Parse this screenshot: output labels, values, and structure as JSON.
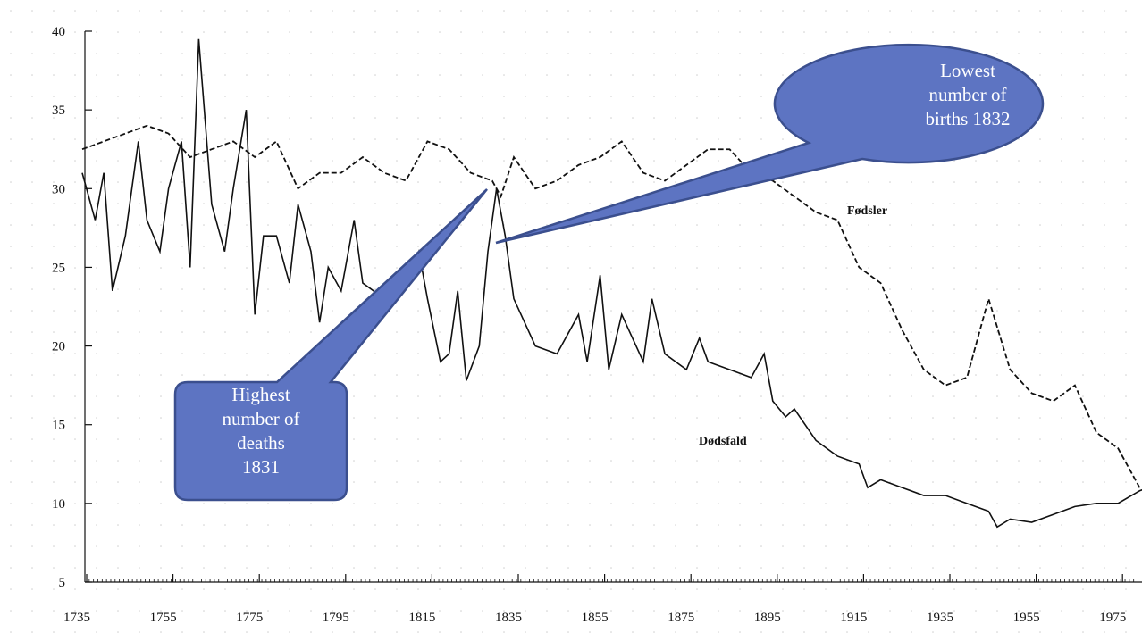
{
  "chart_data": {
    "type": "line",
    "xlim": [
      1735,
      1982
    ],
    "ylim": [
      5,
      40
    ],
    "xticks": [
      1735,
      1755,
      1775,
      1795,
      1815,
      1835,
      1855,
      1875,
      1895,
      1915,
      1935,
      1955,
      1975
    ],
    "yticks": [
      5,
      10,
      15,
      20,
      25,
      30,
      35,
      40
    ],
    "series": [
      {
        "name": "Fødsler",
        "color": "#111111",
        "dash": true,
        "x": [
          1735,
          1740,
          1745,
          1750,
          1755,
          1760,
          1765,
          1770,
          1775,
          1780,
          1785,
          1790,
          1795,
          1800,
          1805,
          1810,
          1815,
          1820,
          1825,
          1830,
          1832,
          1835,
          1840,
          1845,
          1850,
          1855,
          1860,
          1865,
          1870,
          1875,
          1880,
          1885,
          1890,
          1895,
          1900,
          1905,
          1910,
          1915,
          1920,
          1925,
          1930,
          1935,
          1940,
          1945,
          1950,
          1955,
          1960,
          1965,
          1970,
          1975,
          1980,
          1982
        ],
        "values": [
          32.5,
          33,
          33.5,
          34,
          33.5,
          32,
          32.5,
          33,
          32,
          33,
          30,
          31,
          31,
          32,
          31,
          30.5,
          33,
          32.5,
          31,
          30.5,
          29.5,
          32,
          30,
          30.5,
          31.5,
          32,
          33,
          31,
          30.5,
          31.5,
          32.5,
          32.5,
          31,
          30.5,
          29.5,
          28.5,
          28,
          25,
          24,
          21,
          18.5,
          17.5,
          18,
          23,
          18.5,
          17,
          16.5,
          17.5,
          14.5,
          13.5,
          11,
          10.5
        ]
      },
      {
        "name": "Dødsfald",
        "color": "#111111",
        "dash": false,
        "x": [
          1735,
          1738,
          1740,
          1742,
          1745,
          1748,
          1750,
          1753,
          1755,
          1758,
          1760,
          1762,
          1765,
          1768,
          1770,
          1773,
          1775,
          1777,
          1780,
          1783,
          1785,
          1788,
          1790,
          1792,
          1795,
          1798,
          1800,
          1805,
          1810,
          1813,
          1815,
          1818,
          1820,
          1822,
          1824,
          1827,
          1829,
          1831,
          1833,
          1835,
          1840,
          1845,
          1850,
          1852,
          1855,
          1857,
          1860,
          1865,
          1867,
          1870,
          1875,
          1878,
          1880,
          1885,
          1890,
          1893,
          1895,
          1898,
          1900,
          1905,
          1910,
          1915,
          1917,
          1920,
          1925,
          1930,
          1935,
          1940,
          1945,
          1947,
          1950,
          1955,
          1960,
          1965,
          1970,
          1975,
          1980,
          1982
        ],
        "values": [
          31,
          28,
          31,
          23.5,
          27,
          33,
          28,
          26,
          30,
          33,
          25,
          39.5,
          29,
          26,
          30,
          35,
          22,
          27,
          27,
          24,
          29,
          26,
          21.5,
          25,
          23.5,
          28,
          24,
          23,
          24,
          26,
          23,
          19,
          19.5,
          23.5,
          17.8,
          20,
          26,
          30,
          27,
          23,
          20,
          19.5,
          22,
          19,
          24.5,
          18.5,
          22,
          19,
          23,
          19.5,
          18.5,
          20.5,
          19,
          18.5,
          18,
          19.5,
          16.5,
          15.5,
          16,
          14,
          13,
          12.5,
          11,
          11.5,
          11,
          10.5,
          10.5,
          10,
          9.5,
          8.5,
          9,
          8.8,
          9.3,
          9.8,
          10,
          10,
          10.8,
          11
        ]
      }
    ],
    "annotations": [
      {
        "lines": [
          "Lowest",
          "number of",
          "births 1832"
        ]
      },
      {
        "lines": [
          "Highest",
          "number of",
          "deaths",
          "1831"
        ]
      }
    ]
  }
}
